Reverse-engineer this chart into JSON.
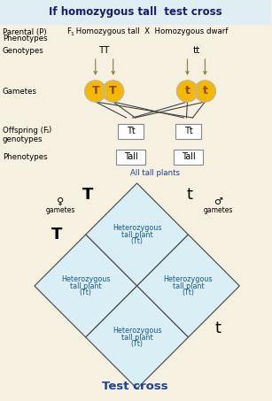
{
  "title": "If homozygous tall  test cross",
  "bg_color": "#f5f0e0",
  "header_bg": "#deeef2",
  "title_color": "#1a1a6e",
  "gamete_color": "#f5b800",
  "gamete_border": "#b8b8b8",
  "gamete_text_color": "#8B4500",
  "cell_bg": "#daeef5",
  "cell_border": "#555555",
  "box_border": "#888888",
  "text_color": "#000000",
  "label_color": "#333333",
  "blue_text": "#1a3fa0",
  "punnett_cell_text": "#1a5a8a",
  "arrow_color": "#888855",
  "parental_label": "Parental (P)\nPhenotypes",
  "parental_text": " Homozygous tall  X  Homozygous dwarf",
  "genotypes_label": "Genotypes",
  "gametes_label": "Gametes",
  "offspring_label": "Offspring (F₁)\ngenotypes",
  "phenotypes_label": "Phenotypes",
  "all_tall": "All tall plants",
  "test_cross": "Test cross"
}
